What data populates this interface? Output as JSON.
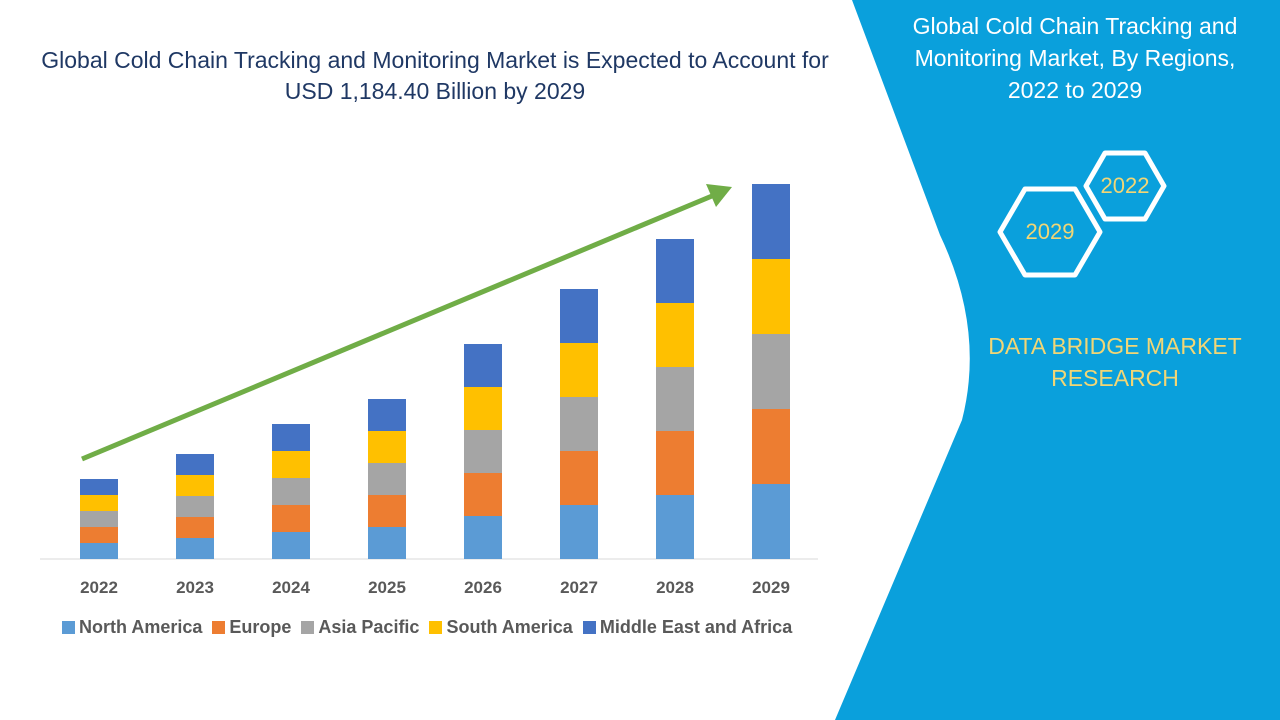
{
  "title": "Global Cold Chain Tracking and Monitoring Market is Expected to Account for USD 1,184.40 Billion by 2029",
  "side_panel": {
    "title": "Global Cold Chain Tracking and Monitoring Market, By Regions, 2022 to 2029",
    "hex_start": "2022",
    "hex_end": "2029",
    "brand": "DATA BRIDGE MARKET RESEARCH",
    "panel_color": "#0aa0dc"
  },
  "chart_data": {
    "type": "bar",
    "stacked": true,
    "title": "Global Cold Chain Tracking and Monitoring Market is Expected to Account for USD 1,184.40 Billion by 2029",
    "xlabel": "",
    "ylabel": "",
    "y_axis_shown": false,
    "grid": false,
    "legend_position": "bottom",
    "trend_arrow": true,
    "trend_arrow_color": "#70ad47",
    "categories": [
      "2022",
      "2023",
      "2024",
      "2025",
      "2026",
      "2027",
      "2028",
      "2029"
    ],
    "series": [
      {
        "name": "North America",
        "color": "#5b9bd5",
        "values": [
          16,
          21,
          27,
          32,
          43,
          54,
          64,
          75
        ]
      },
      {
        "name": "Europe",
        "color": "#ed7d31",
        "values": [
          16,
          21,
          27,
          32,
          43,
          54,
          64,
          75
        ]
      },
      {
        "name": "Asia Pacific",
        "color": "#a5a5a5",
        "values": [
          16,
          21,
          27,
          32,
          43,
          54,
          64,
          75
        ]
      },
      {
        "name": "South America",
        "color": "#ffc000",
        "values": [
          16,
          21,
          27,
          32,
          43,
          54,
          64,
          75
        ]
      },
      {
        "name": "Middle East and Africa",
        "color": "#4472c4",
        "values": [
          16,
          21,
          27,
          32,
          43,
          54,
          64,
          75
        ]
      }
    ]
  }
}
